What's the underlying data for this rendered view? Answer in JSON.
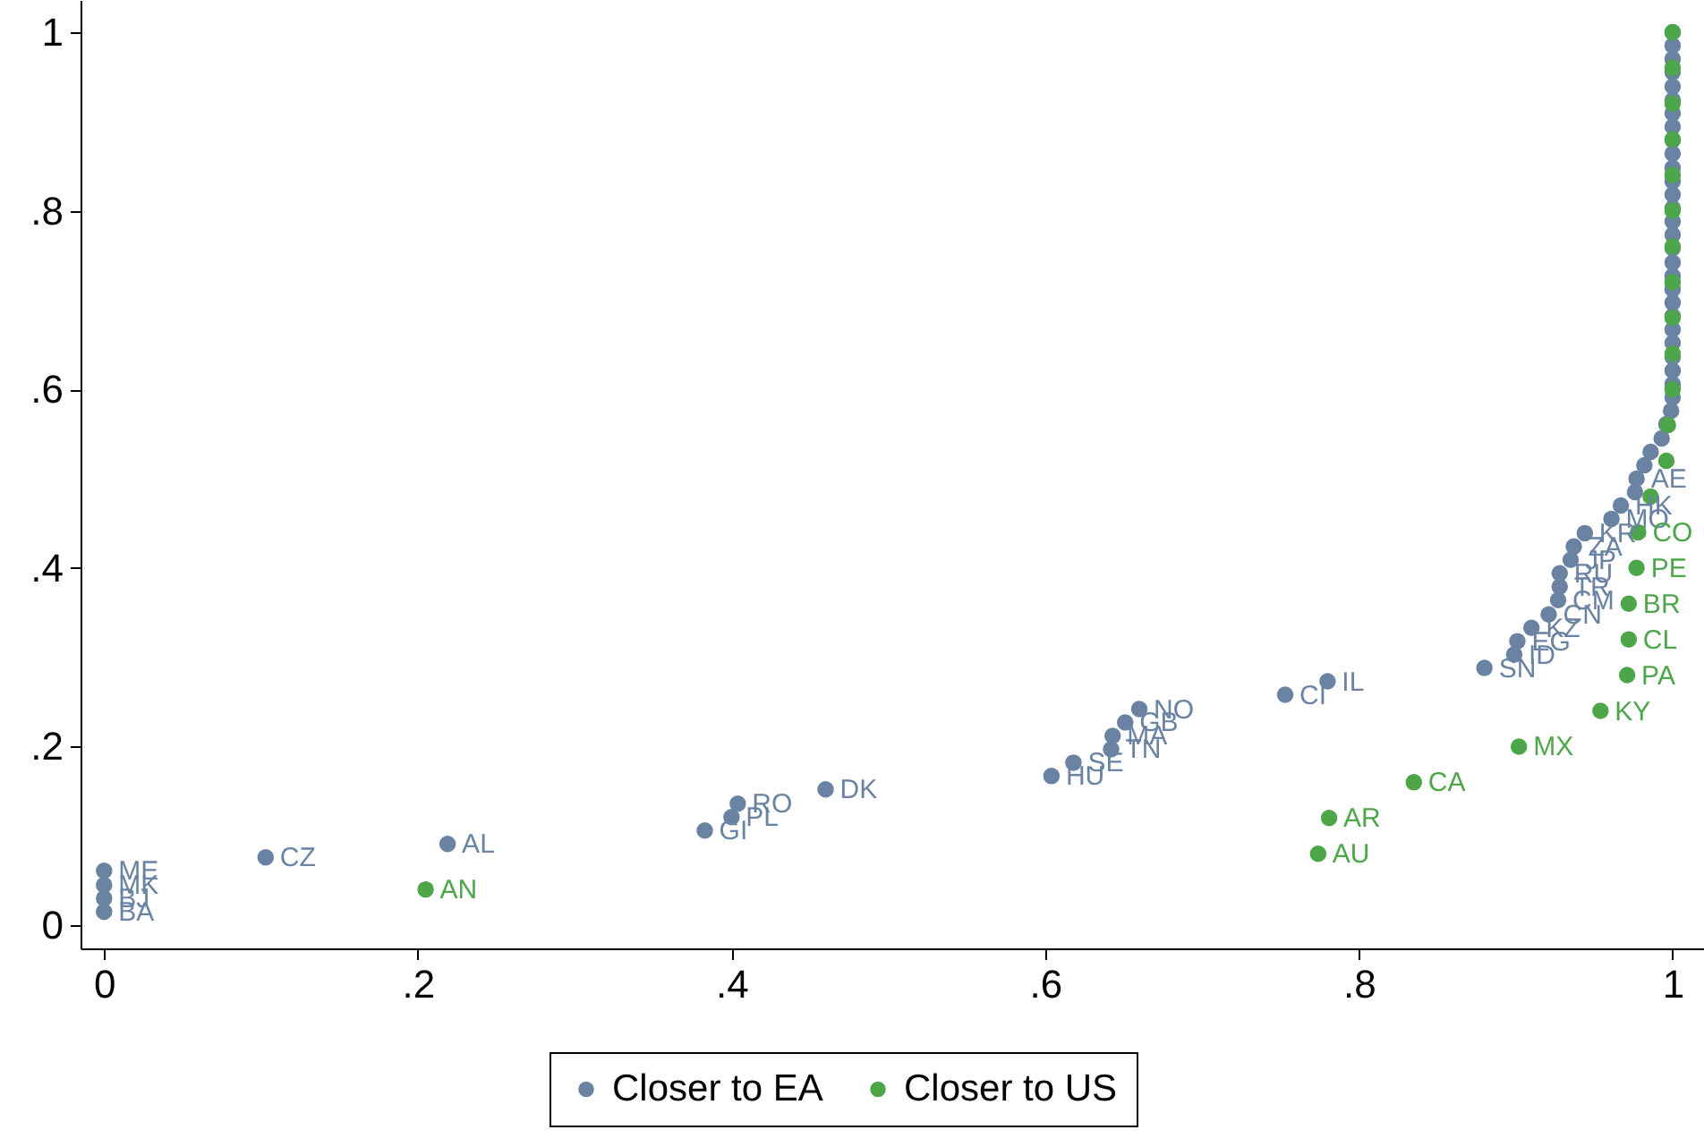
{
  "chart_data": {
    "type": "scatter",
    "marker": "circle",
    "grid": false,
    "legend": "bottom",
    "xlim": [
      -0.015,
      1.02
    ],
    "ylim": [
      -0.026,
      1.036
    ],
    "xticks": [
      0,
      {
        "value": 0.2,
        "label": ".2"
      },
      {
        "value": 0.4,
        "label": ".4"
      },
      {
        "value": 0.6,
        "label": ".6"
      },
      {
        "value": 0.8,
        "label": ".8"
      },
      1
    ],
    "yticks": [
      0,
      {
        "value": 0.2,
        "label": ".2"
      },
      {
        "value": 0.4,
        "label": ".4"
      },
      {
        "value": 0.6,
        "label": ".6"
      },
      {
        "value": 0.8,
        "label": ".8"
      },
      1
    ],
    "series": [
      {
        "name": "Closer to EA",
        "color": "#6a83a3",
        "x": [
          0,
          0,
          0,
          0,
          0.103,
          0.219,
          0.383,
          0.4,
          0.404,
          0.46,
          0.604,
          0.618,
          0.642,
          0.643,
          0.651,
          0.66,
          0.753,
          0.78,
          0.88,
          0.899,
          0.901,
          0.91,
          0.921,
          0.927,
          0.928,
          0.928,
          0.935,
          0.937,
          0.944,
          0.961,
          0.967,
          0.976,
          0.977,
          0.982,
          0.986,
          0.993,
          0.996,
          0.999,
          1,
          1,
          1,
          1,
          1,
          1,
          1,
          1,
          1,
          1,
          1,
          1,
          1,
          1,
          1,
          1,
          1,
          1,
          1,
          1,
          1,
          1,
          1,
          1,
          1,
          1,
          1,
          1
        ],
        "values": [
          0.015,
          0.03,
          0.045,
          0.061,
          0.076,
          0.091,
          0.106,
          0.121,
          0.136,
          0.152,
          0.167,
          0.182,
          0.197,
          0.212,
          0.227,
          0.242,
          0.258,
          0.273,
          0.288,
          0.303,
          0.318,
          0.333,
          0.348,
          0.364,
          0.379,
          0.394,
          0.409,
          0.424,
          0.439,
          0.455,
          0.47,
          0.485,
          0.5,
          0.515,
          0.53,
          0.545,
          0.561,
          0.576,
          0.591,
          0.606,
          0.621,
          0.636,
          0.652,
          0.667,
          0.682,
          0.697,
          0.712,
          0.727,
          0.742,
          0.758,
          0.773,
          0.788,
          0.803,
          0.818,
          0.833,
          0.848,
          0.864,
          0.879,
          0.894,
          0.909,
          0.924,
          0.939,
          0.955,
          0.97,
          0.985,
          1
        ]
      },
      {
        "name": "Closer to US",
        "color": "#4ea64a",
        "x": [
          0.205,
          0.774,
          0.781,
          0.835,
          0.902,
          0.954,
          0.971,
          0.972,
          0.972,
          0.977,
          0.978,
          0.986,
          0.996,
          0.997,
          1,
          1,
          1,
          1,
          1,
          1,
          1,
          1,
          1,
          1,
          1
        ],
        "values": [
          0.04,
          0.08,
          0.12,
          0.16,
          0.2,
          0.24,
          0.28,
          0.32,
          0.36,
          0.4,
          0.44,
          0.48,
          0.52,
          0.56,
          0.6,
          0.64,
          0.68,
          0.72,
          0.76,
          0.8,
          0.84,
          0.88,
          0.92,
          0.96,
          1
        ]
      }
    ],
    "annotations": [
      {
        "text": "BA",
        "x": 0,
        "y": 0.015
      },
      {
        "text": "BJ",
        "x": 0,
        "y": 0.03
      },
      {
        "text": "MK",
        "x": 0,
        "y": 0.045
      },
      {
        "text": "ME",
        "x": 0,
        "y": 0.061
      },
      {
        "text": "CZ",
        "x": 0.103,
        "y": 0.076
      },
      {
        "text": "AL",
        "x": 0.219,
        "y": 0.091
      },
      {
        "text": "GI",
        "x": 0.383,
        "y": 0.106
      },
      {
        "text": "PL",
        "x": 0.4,
        "y": 0.121
      },
      {
        "text": "RO",
        "x": 0.404,
        "y": 0.136
      },
      {
        "text": "DK",
        "x": 0.46,
        "y": 0.152
      },
      {
        "text": "HU",
        "x": 0.604,
        "y": 0.167
      },
      {
        "text": "SE",
        "x": 0.618,
        "y": 0.182
      },
      {
        "text": "TN",
        "x": 0.642,
        "y": 0.197
      },
      {
        "text": "MA",
        "x": 0.643,
        "y": 0.212
      },
      {
        "text": "GB",
        "x": 0.651,
        "y": 0.227
      },
      {
        "text": "NO",
        "x": 0.66,
        "y": 0.242
      },
      {
        "text": "CI",
        "x": 0.753,
        "y": 0.258
      },
      {
        "text": "IL",
        "x": 0.78,
        "y": 0.273
      },
      {
        "text": "SN",
        "x": 0.88,
        "y": 0.288
      },
      {
        "text": "ID",
        "x": 0.899,
        "y": 0.303
      },
      {
        "text": "EG",
        "x": 0.901,
        "y": 0.318
      },
      {
        "text": "KZ",
        "x": 0.91,
        "y": 0.333
      },
      {
        "text": "CN",
        "x": 0.921,
        "y": 0.348
      },
      {
        "text": "CM",
        "x": 0.927,
        "y": 0.364
      },
      {
        "text": "TR",
        "x": 0.928,
        "y": 0.379
      },
      {
        "text": "RU",
        "x": 0.928,
        "y": 0.394
      },
      {
        "text": "JP",
        "x": 0.935,
        "y": 0.409
      },
      {
        "text": "ZA",
        "x": 0.937,
        "y": 0.424
      },
      {
        "text": "KR",
        "x": 0.944,
        "y": 0.439
      },
      {
        "text": "MO",
        "x": 0.961,
        "y": 0.455
      },
      {
        "text": "HK",
        "x": 0.967,
        "y": 0.47
      },
      {
        "text": "AE",
        "x": 0.977,
        "y": 0.5
      },
      {
        "text": "AN",
        "x": 0.205,
        "y": 0.04
      },
      {
        "text": "AU",
        "x": 0.774,
        "y": 0.08
      },
      {
        "text": "AR",
        "x": 0.781,
        "y": 0.12
      },
      {
        "text": "CA",
        "x": 0.835,
        "y": 0.16
      },
      {
        "text": "MX",
        "x": 0.902,
        "y": 0.2
      },
      {
        "text": "KY",
        "x": 0.954,
        "y": 0.24
      },
      {
        "text": "PA",
        "x": 0.971,
        "y": 0.28
      },
      {
        "text": "CL",
        "x": 0.972,
        "y": 0.32
      },
      {
        "text": "BR",
        "x": 0.972,
        "y": 0.36
      },
      {
        "text": "PE",
        "x": 0.977,
        "y": 0.4
      },
      {
        "text": "CO",
        "x": 0.978,
        "y": 0.44
      }
    ]
  }
}
